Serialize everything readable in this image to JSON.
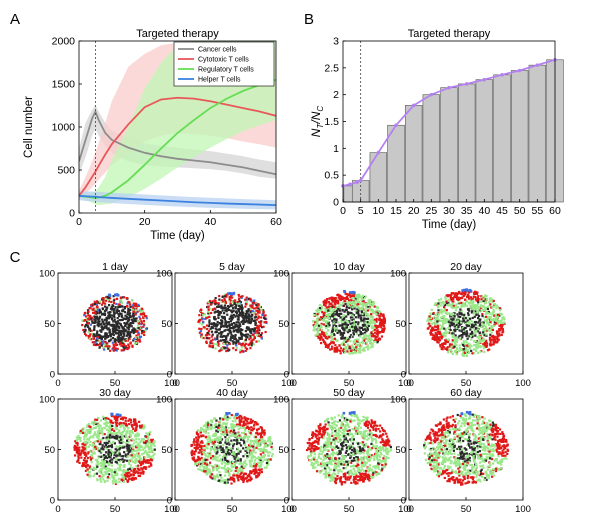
{
  "panel_labels": [
    "A",
    "B",
    "C"
  ],
  "chart_data": [
    {
      "type": "line",
      "panel": "A",
      "title": "Targeted therapy",
      "xlabel": "Time (day)",
      "ylabel": "Cell number",
      "xlim": [
        0,
        60
      ],
      "ylim": [
        0,
        2000
      ],
      "xticks": [
        0,
        20,
        40,
        60
      ],
      "yticks": [
        0,
        500,
        1000,
        1500,
        2000
      ],
      "vline_x": 5,
      "legend_position": "top-right",
      "x": [
        0,
        2,
        4,
        5,
        6,
        8,
        10,
        15,
        20,
        25,
        30,
        35,
        40,
        45,
        50,
        55,
        60
      ],
      "series": [
        {
          "name": "Cancer cells",
          "color": "#8c8c8c",
          "band_color": "#d4d4d4",
          "values": [
            600,
            850,
            1100,
            1180,
            1080,
            930,
            850,
            760,
            700,
            660,
            630,
            610,
            590,
            560,
            530,
            490,
            450
          ],
          "lower": [
            450,
            650,
            900,
            980,
            900,
            780,
            700,
            600,
            560,
            540,
            530,
            520,
            510,
            490,
            460,
            420,
            400
          ],
          "upper": [
            750,
            1050,
            1200,
            1260,
            1180,
            1050,
            960,
            870,
            810,
            780,
            760,
            740,
            720,
            690,
            660,
            620,
            590
          ]
        },
        {
          "name": "Cytotoxic T cells",
          "color": "#e8585a",
          "band_color": "#fbcccc",
          "values": [
            200,
            300,
            420,
            480,
            550,
            680,
            800,
            1030,
            1230,
            1320,
            1340,
            1330,
            1300,
            1260,
            1220,
            1180,
            1130
          ],
          "lower": [
            150,
            220,
            300,
            340,
            390,
            470,
            560,
            700,
            830,
            900,
            930,
            920,
            900,
            870,
            830,
            800,
            760
          ],
          "upper": [
            260,
            420,
            600,
            700,
            820,
            1050,
            1300,
            1700,
            1850,
            1950,
            1980,
            1980,
            1970,
            1960,
            1940,
            1920,
            1900
          ]
        },
        {
          "name": "Regulatory T cells",
          "color": "#66dd55",
          "band_color": "#c2f5b4",
          "values": [
            200,
            190,
            180,
            175,
            180,
            200,
            240,
            380,
            560,
            750,
            930,
            1080,
            1220,
            1330,
            1420,
            1490,
            1550
          ],
          "lower": [
            170,
            150,
            120,
            100,
            90,
            100,
            110,
            180,
            280,
            400,
            530,
            650,
            760,
            860,
            950,
            1020,
            1080
          ],
          "upper": [
            230,
            230,
            240,
            250,
            300,
            420,
            620,
            1000,
            1450,
            1750,
            1950,
            2000,
            2000,
            2000,
            2000,
            2000,
            2000
          ]
        },
        {
          "name": "Helper T cells",
          "color": "#3c82e0",
          "band_color": "#b8d2f2",
          "values": [
            200,
            195,
            190,
            190,
            185,
            180,
            175,
            165,
            155,
            145,
            135,
            125,
            118,
            110,
            104,
            98,
            92
          ],
          "lower": [
            150,
            140,
            135,
            130,
            125,
            120,
            115,
            105,
            95,
            85,
            75,
            68,
            60,
            55,
            50,
            45,
            42
          ],
          "upper": [
            250,
            250,
            250,
            250,
            245,
            240,
            235,
            225,
            215,
            205,
            195,
            185,
            178,
            170,
            162,
            155,
            148
          ]
        }
      ]
    },
    {
      "type": "bar",
      "panel": "B",
      "title": "Targeted therapy",
      "xlabel": "Time (day)",
      "ylabel_main": "N",
      "ylabel_main_sub": "T",
      "ylabel_den": "N",
      "ylabel_den_sub": "C",
      "xlim": [
        0,
        60
      ],
      "ylim": [
        0,
        3
      ],
      "xticks": [
        0,
        5,
        10,
        15,
        20,
        25,
        30,
        35,
        40,
        45,
        50,
        55,
        60
      ],
      "yticks": [
        0,
        0.5,
        1,
        1.5,
        2,
        2.5,
        3
      ],
      "vline_x": 5,
      "bar_color": "#c8c8c8",
      "line_color": "#b482f0",
      "x": [
        0,
        2,
        4,
        5,
        10,
        15,
        20,
        25,
        30,
        35,
        40,
        45,
        50,
        55,
        60
      ],
      "line_values": [
        0.3,
        0.33,
        0.37,
        0.4,
        0.92,
        1.43,
        1.8,
        2.0,
        2.13,
        2.2,
        2.28,
        2.37,
        2.45,
        2.55,
        2.65
      ],
      "bars": [
        {
          "x": 2.5,
          "value": 0.3
        },
        {
          "x": 5,
          "value": 0.4
        },
        {
          "x": 10,
          "value": 0.92
        },
        {
          "x": 15,
          "value": 1.43
        },
        {
          "x": 20,
          "value": 1.8
        },
        {
          "x": 25,
          "value": 2.0
        },
        {
          "x": 30,
          "value": 2.13
        },
        {
          "x": 35,
          "value": 2.2
        },
        {
          "x": 40,
          "value": 2.28
        },
        {
          "x": 45,
          "value": 2.37
        },
        {
          "x": 50,
          "value": 2.45
        },
        {
          "x": 55,
          "value": 2.55
        },
        {
          "x": 60,
          "value": 2.65
        }
      ]
    },
    {
      "type": "scatter",
      "panel": "C",
      "xlim": [
        0,
        100
      ],
      "ylim": [
        0,
        100
      ],
      "xticks": [
        0,
        50,
        100
      ],
      "yticks": [
        0,
        50,
        100
      ],
      "center": [
        50,
        50
      ],
      "colors": {
        "cancer": "#2a2a2a",
        "cytotoxic": "#e01818",
        "regulatory": "#9be88a",
        "helper": "#3c6ee0"
      },
      "panels": [
        {
          "title": "1 day",
          "tumor_radius": 29,
          "cancer_radius": 20
        },
        {
          "title": "5 day",
          "tumor_radius": 31,
          "cancer_radius": 21
        },
        {
          "title": "10 day",
          "tumor_radius": 32,
          "cancer_radius": 18
        },
        {
          "title": "20 day",
          "tumor_radius": 34,
          "cancer_radius": 16
        },
        {
          "title": "30 day",
          "tumor_radius": 36,
          "cancer_radius": 15
        },
        {
          "title": "40 day",
          "tumor_radius": 36,
          "cancer_radius": 14
        },
        {
          "title": "50 day",
          "tumor_radius": 37,
          "cancer_radius": 13
        },
        {
          "title": "60 day",
          "tumor_radius": 37,
          "cancer_radius": 13
        }
      ]
    }
  ]
}
